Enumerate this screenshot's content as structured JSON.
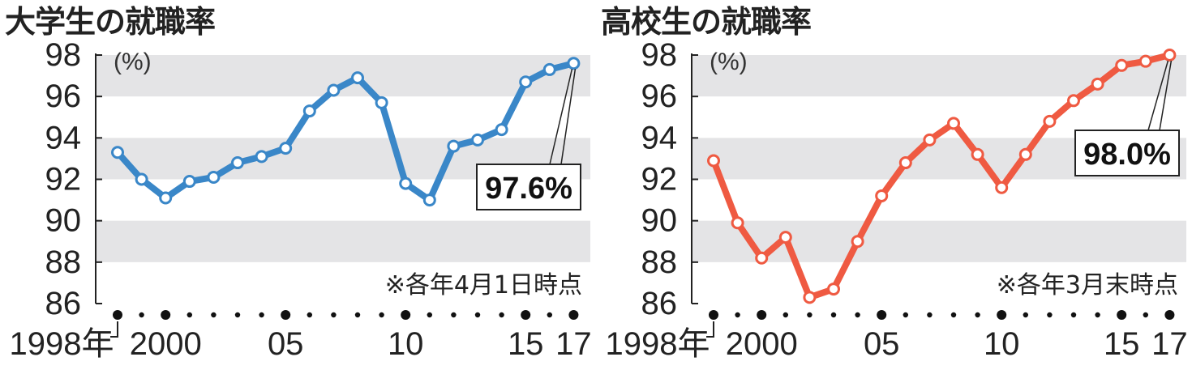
{
  "chart_data": [
    {
      "type": "line",
      "title": "大学生の就職率",
      "unit": "(%)",
      "note": "※各年4月1日時点",
      "callout": "97.6%",
      "color": "#3a87c8",
      "x": [
        1998,
        1999,
        2000,
        2001,
        2002,
        2003,
        2004,
        2005,
        2006,
        2007,
        2008,
        2009,
        2010,
        2011,
        2012,
        2013,
        2014,
        2015,
        2016,
        2017
      ],
      "values": [
        93.3,
        92.0,
        91.1,
        91.9,
        92.1,
        92.8,
        93.1,
        93.5,
        95.3,
        96.3,
        96.9,
        95.7,
        91.8,
        91.0,
        93.6,
        93.9,
        94.4,
        96.7,
        97.3,
        97.6
      ],
      "ylim": [
        86,
        98
      ],
      "yticks": [
        "98",
        "96",
        "94",
        "92",
        "90",
        "88",
        "86"
      ],
      "xtick_labels": [
        "1998年",
        "2000",
        "05",
        "10",
        "15",
        "17"
      ],
      "grid": "alternating horizontal bands"
    },
    {
      "type": "line",
      "title": "高校生の就職率",
      "unit": "(%)",
      "note": "※各年3月末時点",
      "callout": "98.0%",
      "color": "#ef5a42",
      "x": [
        1998,
        1999,
        2000,
        2001,
        2002,
        2003,
        2004,
        2005,
        2006,
        2007,
        2008,
        2009,
        2010,
        2011,
        2012,
        2013,
        2014,
        2015,
        2016,
        2017
      ],
      "values": [
        92.9,
        89.9,
        88.2,
        89.2,
        86.3,
        86.7,
        89.0,
        91.2,
        92.8,
        93.9,
        94.7,
        93.2,
        91.6,
        93.2,
        94.8,
        95.8,
        96.6,
        97.5,
        97.7,
        98.0
      ],
      "ylim": [
        86,
        98
      ],
      "yticks": [
        "98",
        "96",
        "94",
        "92",
        "90",
        "88",
        "86"
      ],
      "xtick_labels": [
        "1998年",
        "2000",
        "05",
        "10",
        "15",
        "17"
      ],
      "grid": "alternating horizontal bands"
    }
  ]
}
